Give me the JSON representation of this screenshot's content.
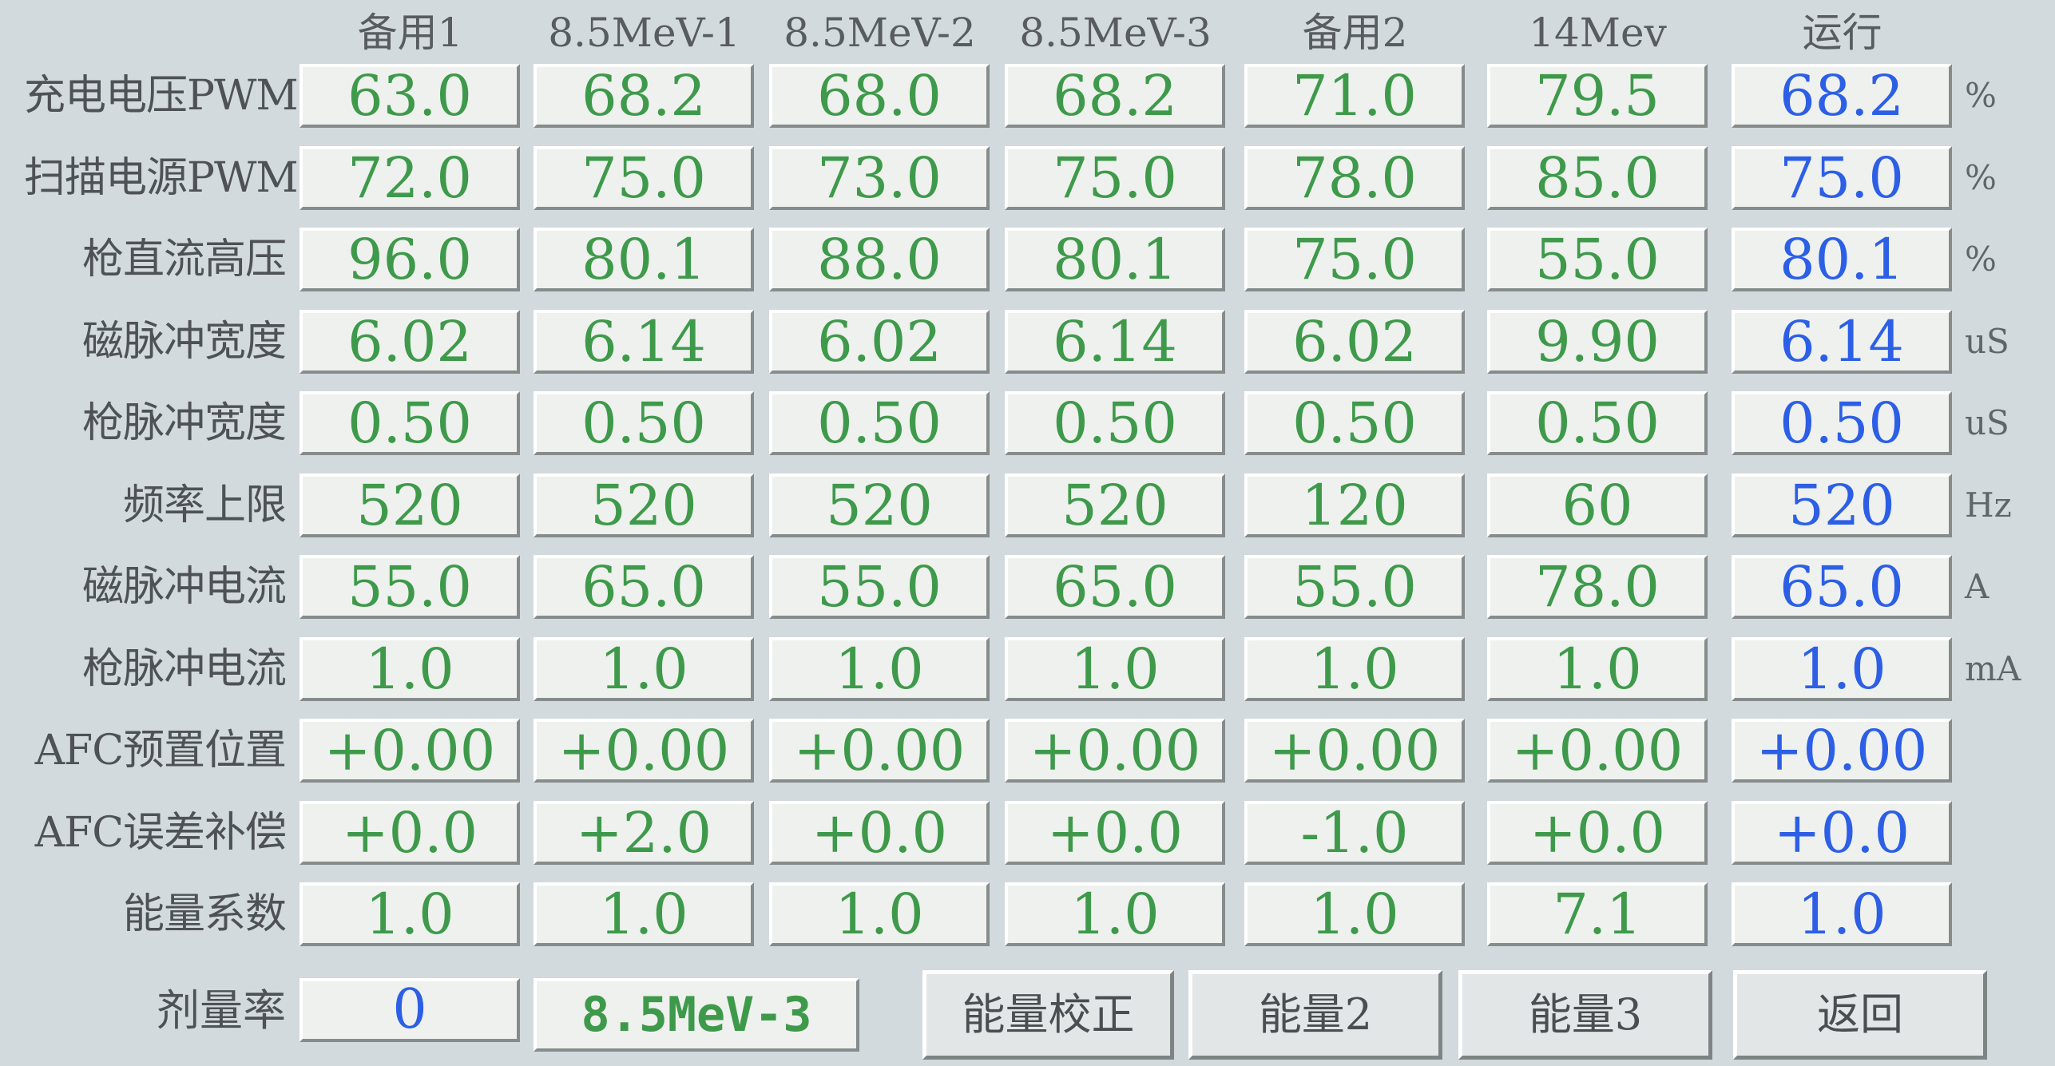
{
  "columns": [
    "备用1",
    "8.5MeV-1",
    "8.5MeV-2",
    "8.5MeV-3",
    "备用2",
    "14Mev",
    "运行"
  ],
  "rows": [
    {
      "label": "充电电压PWM",
      "unit": "%",
      "values": [
        "63.0",
        "68.2",
        "68.0",
        "68.2",
        "71.0",
        "79.5",
        "68.2"
      ]
    },
    {
      "label": "扫描电源PWM",
      "unit": "%",
      "values": [
        "72.0",
        "75.0",
        "73.0",
        "75.0",
        "78.0",
        "85.0",
        "75.0"
      ]
    },
    {
      "label": "枪直流高压",
      "unit": "%",
      "values": [
        "96.0",
        "80.1",
        "88.0",
        "80.1",
        "75.0",
        "55.0",
        "80.1"
      ]
    },
    {
      "label": "磁脉冲宽度",
      "unit": "uS",
      "values": [
        "6.02",
        "6.14",
        "6.02",
        "6.14",
        "6.02",
        "9.90",
        "6.14"
      ]
    },
    {
      "label": "枪脉冲宽度",
      "unit": "uS",
      "values": [
        "0.50",
        "0.50",
        "0.50",
        "0.50",
        "0.50",
        "0.50",
        "0.50"
      ]
    },
    {
      "label": "频率上限",
      "unit": "Hz",
      "values": [
        "520",
        "520",
        "520",
        "520",
        "120",
        "60",
        "520"
      ]
    },
    {
      "label": "磁脉冲电流",
      "unit": "A",
      "values": [
        "55.0",
        "65.0",
        "55.0",
        "65.0",
        "55.0",
        "78.0",
        "65.0"
      ]
    },
    {
      "label": "枪脉冲电流",
      "unit": "mA",
      "values": [
        "1.0",
        "1.0",
        "1.0",
        "1.0",
        "1.0",
        "1.0",
        "1.0"
      ]
    },
    {
      "label": "AFC预置位置",
      "unit": "",
      "values": [
        "+0.00",
        "+0.00",
        "+0.00",
        "+0.00",
        "+0.00",
        "+0.00",
        "+0.00"
      ]
    },
    {
      "label": "AFC误差补偿",
      "unit": "",
      "values": [
        "+0.0",
        "+2.0",
        "+0.0",
        "+0.0",
        "-1.0",
        "+0.0",
        "+0.0"
      ]
    },
    {
      "label": "能量系数",
      "unit": "",
      "values": [
        "1.0",
        "1.0",
        "1.0",
        "1.0",
        "1.0",
        "7.1",
        "1.0"
      ]
    }
  ],
  "bottom": {
    "dose_label": "剂量率",
    "dose_value": "0",
    "mode_value": "8.5MeV-3",
    "buttons": [
      "能量校正",
      "能量2",
      "能量3",
      "返回"
    ]
  },
  "colors": {
    "background": "#d3dade",
    "preset_value": "#3e9a4a",
    "running_value": "#2c5fe6",
    "label_text": "#4e5257"
  }
}
